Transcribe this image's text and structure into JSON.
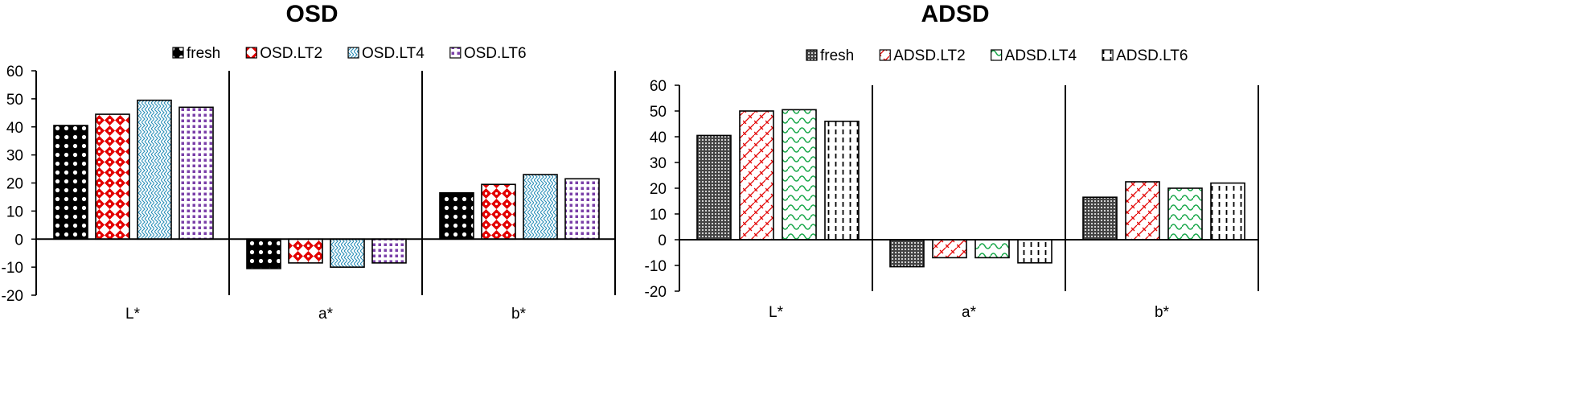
{
  "chart_data": [
    {
      "type": "bar",
      "title": "OSD",
      "categories": [
        "L*",
        "a*",
        "b*"
      ],
      "series": [
        {
          "name": "fresh",
          "values": [
            40.5,
            -10.5,
            16.5
          ],
          "color": "#000000",
          "pattern": "dots"
        },
        {
          "name": "OSD.LT2",
          "values": [
            44.5,
            -8.5,
            19.5
          ],
          "color": "#e30000",
          "pattern": "diamond-grid"
        },
        {
          "name": "OSD.LT4",
          "values": [
            49.5,
            -10.0,
            23.0
          ],
          "color": "#2a8fb8",
          "pattern": "weave"
        },
        {
          "name": "OSD.LT6",
          "values": [
            47.0,
            -8.5,
            21.5
          ],
          "color": "#7a3fa8",
          "pattern": "small-squares"
        }
      ],
      "ylim": [
        -20,
        60
      ],
      "yticks": [
        -20,
        -10,
        0,
        10,
        20,
        30,
        40,
        50,
        60
      ],
      "legend_position": "top",
      "grid": false
    },
    {
      "type": "bar",
      "title": "ADSD",
      "categories": [
        "L*",
        "a*",
        "b*"
      ],
      "series": [
        {
          "name": "fresh",
          "values": [
            40.5,
            -10.5,
            16.5
          ],
          "color": "#555555",
          "pattern": "fine-dots"
        },
        {
          "name": "ADSD.LT2",
          "values": [
            50.0,
            -7.0,
            22.5
          ],
          "color": "#e30000",
          "pattern": "diagonal-lattice"
        },
        {
          "name": "ADSD.LT4",
          "values": [
            50.5,
            -7.0,
            20.0
          ],
          "color": "#1aa84b",
          "pattern": "wave"
        },
        {
          "name": "ADSD.LT6",
          "values": [
            46.0,
            -9.0,
            22.0
          ],
          "color": "#000000",
          "pattern": "dashed-vertical"
        }
      ],
      "ylim": [
        -20,
        60
      ],
      "yticks": [
        -20,
        -10,
        0,
        10,
        20,
        30,
        40,
        50,
        60
      ],
      "legend_position": "top",
      "grid": false
    }
  ]
}
